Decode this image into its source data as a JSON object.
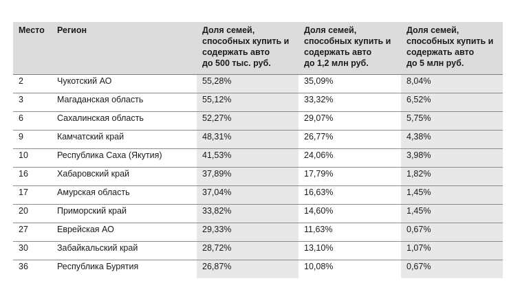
{
  "headers": {
    "rank": "Место",
    "region": "Регион",
    "p1": [
      "Доля семей,",
      "способных купить и",
      "содержать авто",
      "до 500 тыс. руб."
    ],
    "p2": [
      "Доля семей,",
      "способных купить и",
      "содержать авто",
      "до 1,2 млн руб."
    ],
    "p3": [
      "Доля семей,",
      "способных купить и",
      "содержать авто",
      "до 5 млн руб."
    ]
  },
  "rows": [
    {
      "rank": "2",
      "region": "Чукотский АО",
      "p1": "55,28%",
      "p2": "35,09%",
      "p3": "8,04%"
    },
    {
      "rank": "3",
      "region": "Магаданская область",
      "p1": "55,12%",
      "p2": "33,32%",
      "p3": "6,52%"
    },
    {
      "rank": "6",
      "region": "Сахалинская область",
      "p1": "52,27%",
      "p2": "29,07%",
      "p3": "5,75%"
    },
    {
      "rank": "9",
      "region": "Камчатский край",
      "p1": "48,31%",
      "p2": "26,77%",
      "p3": "4,38%"
    },
    {
      "rank": "10",
      "region": "Республика Саха (Якутия)",
      "p1": "41,53%",
      "p2": "24,06%",
      "p3": "3,98%"
    },
    {
      "rank": "16",
      "region": "Хабаровский край",
      "p1": "37,89%",
      "p2": "17,79%",
      "p3": "1,82%"
    },
    {
      "rank": "17",
      "region": "Амурская область",
      "p1": "37,04%",
      "p2": "16,63%",
      "p3": "1,45%"
    },
    {
      "rank": "20",
      "region": "Приморский край",
      "p1": "33,82%",
      "p2": "14,60%",
      "p3": "1,45%"
    },
    {
      "rank": "27",
      "region": "Еврейская АО",
      "p1": "29,33%",
      "p2": "11,63%",
      "p3": "0,67%"
    },
    {
      "rank": "30",
      "region": "Забайкальский край",
      "p1": "28,72%",
      "p2": "13,10%",
      "p3": "1,07%"
    },
    {
      "rank": "36",
      "region": "Республика Бурятия",
      "p1": "26,87%",
      "p2": "10,08%",
      "p3": "0,67%"
    }
  ]
}
